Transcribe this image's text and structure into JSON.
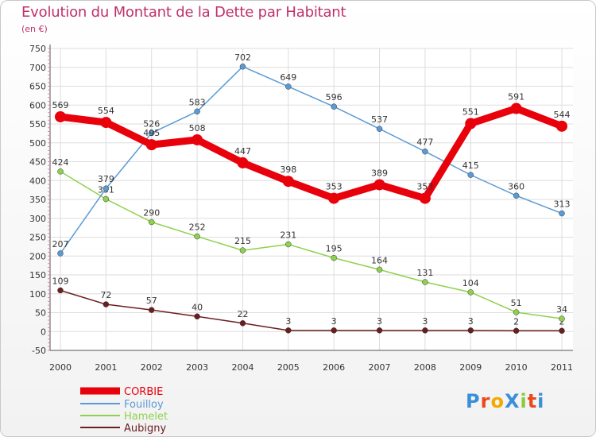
{
  "title": "Evolution du Montant de la Dette par Habitant",
  "subtitle": "(en €)",
  "logo": "ProXiti",
  "chart_data": {
    "type": "line",
    "title": "Evolution du Montant de la Dette par Habitant",
    "subtitle": "(en €)",
    "x": [
      2000,
      2001,
      2002,
      2003,
      2004,
      2005,
      2006,
      2007,
      2008,
      2009,
      2010,
      2011
    ],
    "ylim": [
      -50,
      750
    ],
    "yticks": [
      -50,
      0,
      50,
      100,
      150,
      200,
      250,
      300,
      350,
      400,
      450,
      500,
      550,
      600,
      650,
      700,
      750
    ],
    "grid": true,
    "legend_position": "bottom-left",
    "series": [
      {
        "name": "CORBIE",
        "color": "#e8000b",
        "values": [
          569,
          554,
          495,
          508,
          447,
          398,
          353,
          389,
          353,
          551,
          591,
          544
        ]
      },
      {
        "name": "Fouilloy",
        "color": "#5b9bd5",
        "values": [
          207,
          379,
          526,
          583,
          702,
          649,
          596,
          537,
          477,
          415,
          360,
          313
        ]
      },
      {
        "name": "Hamelet",
        "color": "#8fd14f",
        "values": [
          424,
          351,
          290,
          252,
          215,
          231,
          195,
          164,
          131,
          104,
          51,
          34
        ]
      },
      {
        "name": "Aubigny",
        "color": "#6b1e1e",
        "values": [
          109,
          72,
          57,
          40,
          22,
          3,
          3,
          3,
          3,
          3,
          2,
          2
        ]
      }
    ]
  }
}
